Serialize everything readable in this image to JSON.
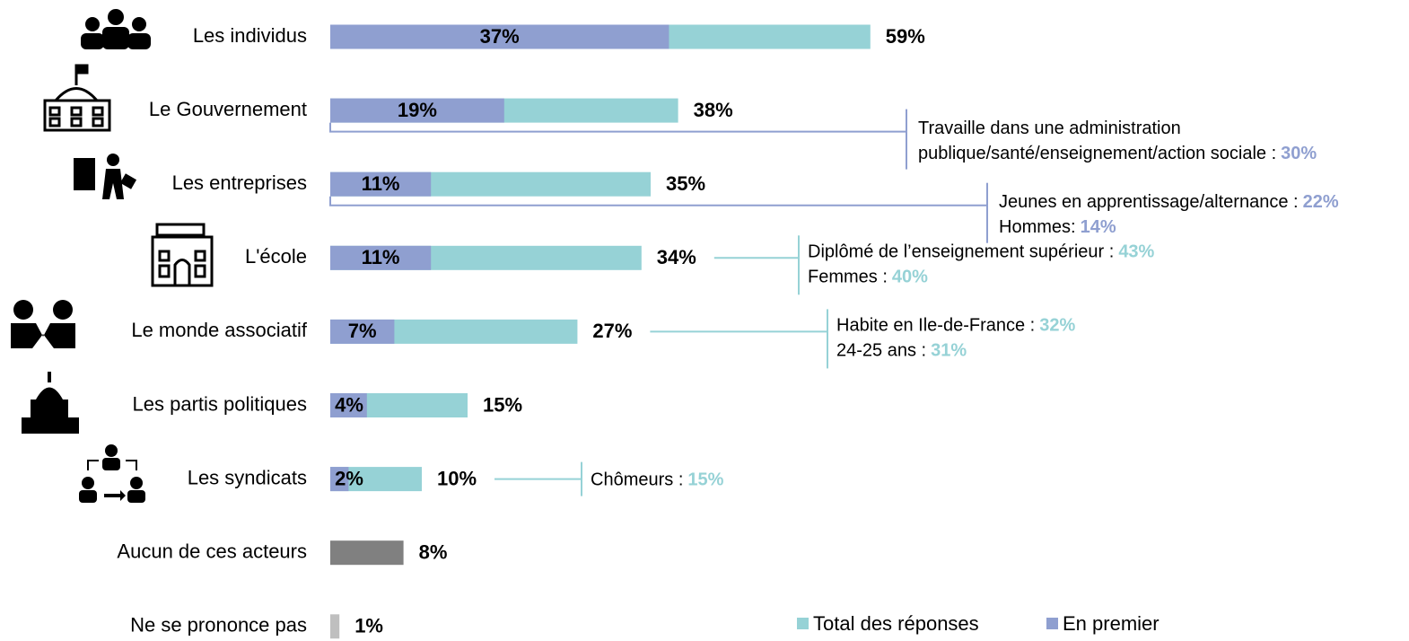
{
  "chart_data": {
    "type": "bar",
    "orientation": "horizontal",
    "categories": [
      "Les individus",
      "Le Gouvernement",
      "Les entreprises",
      "L'école",
      "Le monde associatif",
      "Les partis politiques",
      "Les syndicats",
      "Aucun de ces acteurs",
      "Ne se prononce pas"
    ],
    "series": [
      {
        "name": "Total des réponses",
        "color": "#96d2d6",
        "colors": [
          "#96d2d6",
          "#96d2d6",
          "#96d2d6",
          "#96d2d6",
          "#96d2d6",
          "#96d2d6",
          "#96d2d6",
          "#808080",
          "#bfbfbf"
        ],
        "values": [
          59,
          38,
          35,
          34,
          27,
          15,
          10,
          8,
          1
        ],
        "value_labels": [
          "59%",
          "38%",
          "35%",
          "34%",
          "27%",
          "15%",
          "10%",
          "8%",
          "1%"
        ]
      },
      {
        "name": "En premier",
        "color": "#8f9fd0",
        "values": [
          37,
          19,
          11,
          11,
          7,
          4,
          2,
          null,
          null
        ],
        "value_labels": [
          "37%",
          "19%",
          "11%",
          "11%",
          "7%",
          "4%",
          "2%",
          null,
          null
        ]
      }
    ],
    "annotations": [
      null,
      {
        "color": "#8f9fd0",
        "lines": [
          {
            "text": "Travaille dans une administration"
          },
          {
            "text": "publique/santé/enseignement/action sociale :",
            "value": 30,
            "value_label": "30%"
          }
        ]
      },
      {
        "color": "#8f9fd0",
        "lines": [
          {
            "text": "Jeunes en apprentissage/alternance :",
            "value": 22,
            "value_label": "22%"
          },
          {
            "text": "Hommes:",
            "value": 14,
            "value_label": "14%"
          }
        ]
      },
      {
        "color": "#96d2d6",
        "lines": [
          {
            "text": "Diplômé de l’enseignement supérieur :",
            "value": 43,
            "value_label": "43%"
          },
          {
            "text": "Femmes :",
            "value": 40,
            "value_label": "40%"
          }
        ]
      },
      {
        "color": "#96d2d6",
        "lines": [
          {
            "text": "Habite en Ile-de-France :",
            "value": 32,
            "value_label": "32%"
          },
          {
            "text": "24-25 ans :",
            "value": 31,
            "value_label": "31%"
          }
        ]
      },
      null,
      {
        "color": "#96d2d6",
        "lines": [
          {
            "text": "Chômeurs :",
            "value": 15,
            "value_label": "15%"
          }
        ]
      },
      null,
      null
    ],
    "legend": "bottom-right"
  }
}
